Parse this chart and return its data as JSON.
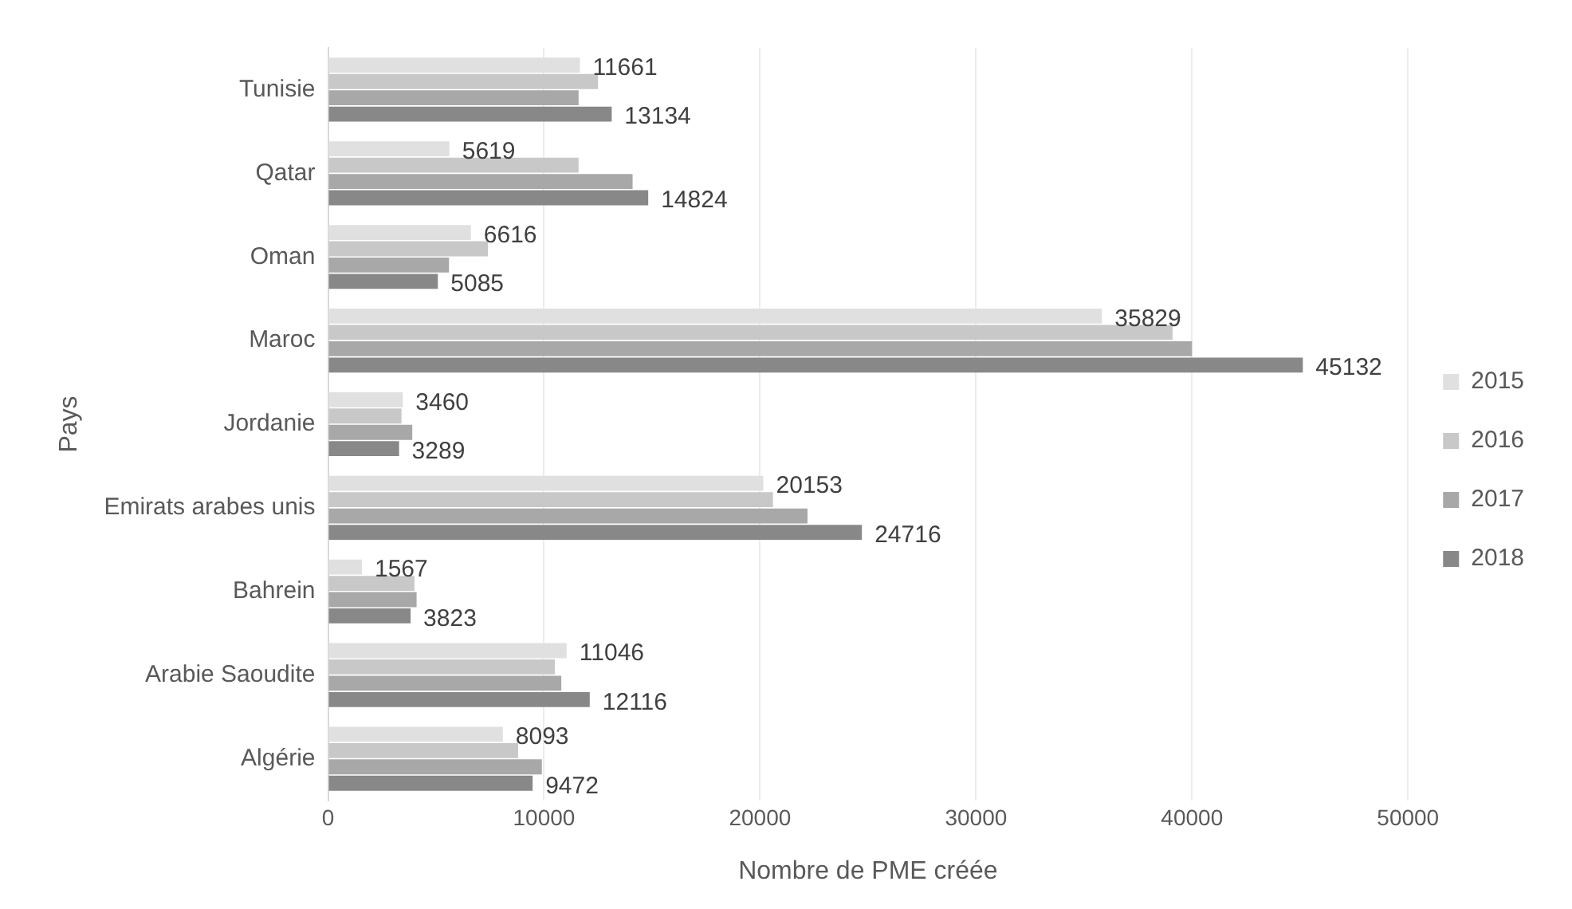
{
  "chart_data": {
    "type": "bar",
    "orientation": "horizontal",
    "xlabel": "Nombre de PME créée",
    "ylabel": "Pays",
    "categories": [
      "Tunisie",
      "Qatar",
      "Oman",
      "Maroc",
      "Jordanie",
      "Emirats arabes unis",
      "Bahrein",
      "Arabie Saoudite",
      "Algérie"
    ],
    "series": [
      {
        "name": "2015",
        "color": "#e0e0e0",
        "values": [
          11661,
          5619,
          6616,
          35829,
          3460,
          20153,
          1567,
          11046,
          8093
        ],
        "value_labels": [
          "11661",
          "5619",
          "6616",
          "35829",
          "3460",
          "20153",
          "1567",
          "11046",
          "8093"
        ]
      },
      {
        "name": "2016",
        "color": "#c8c8c8",
        "values": [
          12500,
          11600,
          7400,
          39100,
          3400,
          20600,
          4000,
          10500,
          8800
        ]
      },
      {
        "name": "2017",
        "color": "#a8a8a8",
        "values": [
          11600,
          14100,
          5600,
          40000,
          3900,
          22200,
          4100,
          10800,
          9900
        ]
      },
      {
        "name": "2018",
        "color": "#888888",
        "values": [
          13134,
          14824,
          5085,
          45132,
          3289,
          24716,
          3823,
          12116,
          9472
        ],
        "value_labels": [
          "13134",
          "14824",
          "5085",
          "45132",
          "3289",
          "24716",
          "3823",
          "12116",
          "9472"
        ]
      }
    ],
    "xlim": [
      0,
      50000
    ],
    "xticks": [
      0,
      10000,
      20000,
      30000,
      40000,
      50000
    ],
    "grid": "x",
    "legend": "right"
  }
}
